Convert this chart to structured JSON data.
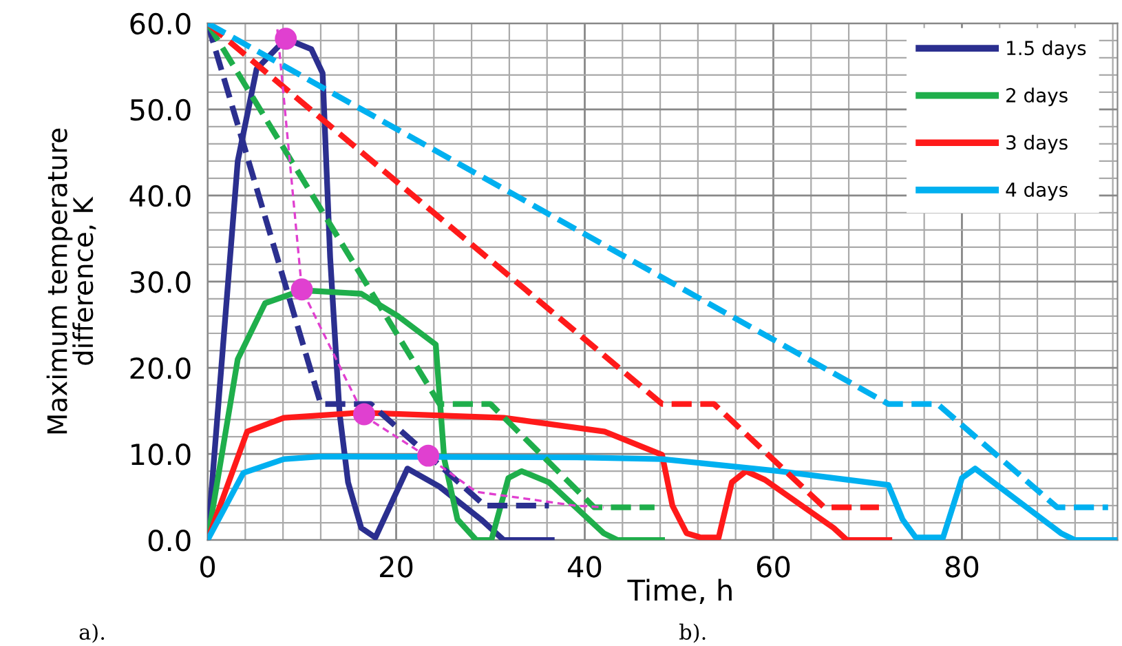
{
  "chart_data": {
    "type": "line",
    "xlabel": "Time, h",
    "ylabel": "Maximum temperature\ndifference, K",
    "xlim": [
      0,
      96.5
    ],
    "ylim": [
      0,
      60
    ],
    "xticks": [
      0,
      20,
      40,
      60,
      80
    ],
    "yticks": [
      {
        "value": 0,
        "label": "0.0"
      },
      {
        "value": 10,
        "label": "10.0"
      },
      {
        "value": 20,
        "label": "20.0"
      },
      {
        "value": 30,
        "label": "30.0"
      },
      {
        "value": 40,
        "label": "40.0"
      },
      {
        "value": 50,
        "label": "50.0"
      },
      {
        "value": 60,
        "label": "60.0"
      }
    ],
    "grid": true,
    "legend": "top right",
    "marker": "none",
    "annotations": [
      "a).",
      "b)."
    ],
    "series": [
      {
        "name": "1.5 days",
        "color": "#2b2f8f",
        "line_style": "solid",
        "x": [
          0,
          3.2,
          5.2,
          8.3,
          11,
          12.2,
          13,
          14,
          14.9,
          16.3,
          17.8,
          21.2,
          24.6,
          29,
          31.4,
          36.5
        ],
        "values": [
          0,
          44,
          54.7,
          58.2,
          57,
          54.2,
          32.8,
          14.7,
          6.7,
          1.4,
          0.3,
          8.3,
          6.2,
          2.4,
          0,
          0
        ]
      },
      {
        "name": "2 days",
        "color": "#1fae4b",
        "line_style": "solid",
        "x": [
          0,
          3.2,
          6.1,
          10,
          16.3,
          20.2,
          24.2,
          25.1,
          26.5,
          28.5,
          30.1,
          31.9,
          33.3,
          36.2,
          42,
          43.5,
          48.2
        ],
        "values": [
          0,
          21,
          27.5,
          29,
          28.6,
          26,
          22.7,
          9.4,
          2.4,
          0,
          0,
          7.2,
          8,
          6.7,
          0.8,
          0,
          0
        ]
      },
      {
        "name": "3 days",
        "color": "#ff1a1a",
        "line_style": "solid",
        "x": [
          0,
          4.2,
          8.1,
          16.3,
          31.4,
          42.1,
          48.2,
          49.3,
          50.8,
          52.3,
          54.2,
          55.6,
          57.1,
          59.1,
          66.4,
          67.8,
          72.3
        ],
        "values": [
          0,
          12.6,
          14.2,
          14.8,
          14.2,
          12.6,
          9.9,
          4,
          0.8,
          0.3,
          0.3,
          6.7,
          8,
          7,
          1.4,
          0,
          0
        ]
      },
      {
        "name": "4 days",
        "color": "#00b0f0",
        "line_style": "solid",
        "x": [
          0,
          3.8,
          8.1,
          12,
          39.2,
          48.2,
          60.6,
          72.2,
          73.7,
          75.1,
          78,
          80,
          81.4,
          90.5,
          92,
          96.2
        ],
        "values": [
          0,
          7.8,
          9.4,
          9.7,
          9.6,
          9.4,
          8,
          6.4,
          2.4,
          0.3,
          0.3,
          7.2,
          8.3,
          0.8,
          0,
          0
        ]
      },
      {
        "color": "#2b2f8f",
        "line_style": "dashed",
        "x": [
          0,
          12,
          17.3,
          29.4,
          36.2
        ],
        "values": [
          60,
          15.8,
          15.8,
          4,
          4
        ]
      },
      {
        "color": "#1fae4b",
        "line_style": "dashed",
        "x": [
          0,
          24.6,
          30,
          41,
          47.4
        ],
        "values": [
          60,
          15.8,
          15.8,
          3.8,
          3.8
        ]
      },
      {
        "color": "#ff1a1a",
        "line_style": "dashed",
        "x": [
          0,
          48.2,
          53.7,
          65.4,
          71.2
        ],
        "values": [
          60,
          15.8,
          15.8,
          3.8,
          3.8
        ]
      },
      {
        "color": "#00b0f0",
        "line_style": "dashed",
        "x": [
          0,
          72.2,
          77.4,
          90.1,
          95.5
        ],
        "values": [
          60,
          15.8,
          15.8,
          3.8,
          3.8
        ]
      },
      {
        "color": "#e040d0",
        "line_style": "dotted",
        "x": [
          7.4,
          10,
          16.6,
          23.4,
          28.5,
          39,
          42
        ],
        "values": [
          59.3,
          29.1,
          14.4,
          9.6,
          5.6,
          4,
          3.8
        ]
      },
      {
        "type": "scatter",
        "color": "#e040d0",
        "marker": "circle",
        "x": [
          8.3,
          10,
          16.6,
          23.4
        ],
        "values": [
          58.2,
          29.1,
          14.6,
          9.8
        ]
      }
    ]
  }
}
